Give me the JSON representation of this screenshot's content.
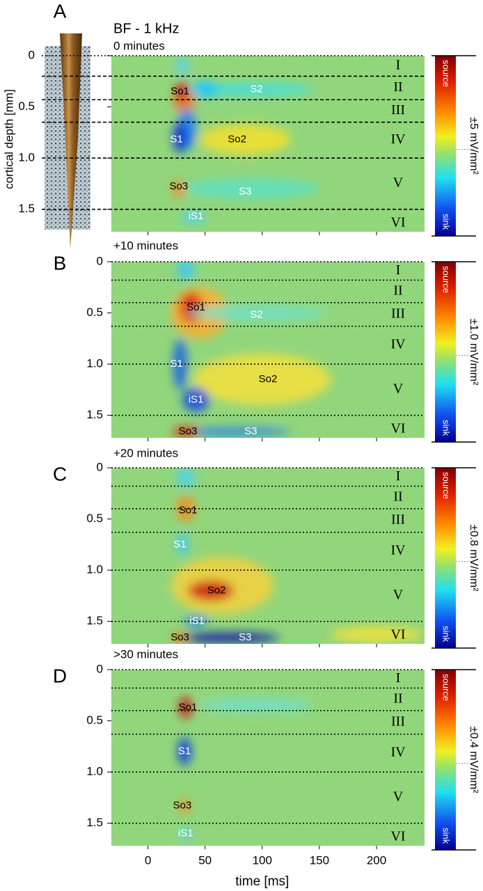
{
  "chart_data": [
    {
      "type": "heatmap",
      "panel": "A",
      "header": "BF - 1 kHz",
      "title": "0 minutes",
      "y_label": "cortical depth [mm]",
      "xlim": [
        -32,
        242
      ],
      "ylim": [
        0,
        1.72
      ],
      "xticks": [
        0,
        50,
        100,
        150,
        200
      ],
      "yticks": [
        0,
        0.5,
        {
          "value": 1,
          "label": "1.0"
        },
        1.5
      ],
      "layer_boundaries": [
        0.2,
        0.43,
        0.65,
        1.0,
        1.5
      ],
      "layers": [
        "I",
        "II",
        "III",
        "IV",
        "V",
        "VI"
      ],
      "annotations": [
        "So1",
        "S2",
        "S1",
        "So2",
        "So3",
        "S3",
        "iS1"
      ],
      "colorbar": {
        "top": "source",
        "bottom": "sink",
        "label": "±5 mV/mm²"
      }
    },
    {
      "type": "heatmap",
      "panel": "B",
      "title": "+10 minutes",
      "xlim": [
        -32,
        242
      ],
      "ylim": [
        0,
        1.72
      ],
      "xticks": [
        0,
        50,
        100,
        150,
        200
      ],
      "yticks": [
        0,
        0.5,
        {
          "value": 1,
          "label": "1.0"
        },
        1.5
      ],
      "layer_boundaries": [
        0.18,
        0.4,
        0.63,
        1.0,
        1.5
      ],
      "layers": [
        "I",
        "II",
        "III",
        "IV",
        "V",
        "VI"
      ],
      "annotations": [
        "So1",
        "S2",
        "S1",
        "So2",
        "iS1",
        "So3",
        "S3"
      ],
      "colorbar": {
        "top": "source",
        "bottom": "sink",
        "label": "±1.0 mV/mm²"
      }
    },
    {
      "type": "heatmap",
      "panel": "C",
      "title": "+20 minutes",
      "xlim": [
        -32,
        242
      ],
      "ylim": [
        0,
        1.72
      ],
      "xticks": [
        0,
        50,
        100,
        150,
        200
      ],
      "yticks": [
        0,
        0.5,
        {
          "value": 1,
          "label": "1.0"
        },
        1.5
      ],
      "layer_boundaries": [
        0.18,
        0.4,
        0.63,
        1.0,
        1.5
      ],
      "layers": [
        "I",
        "II",
        "III",
        "IV",
        "V",
        "VI"
      ],
      "annotations": [
        "So1",
        "S1",
        "So2",
        "iS1",
        "So3",
        "S3"
      ],
      "colorbar": {
        "top": "source",
        "bottom": "sink",
        "label": "±0.8 mV/mm²"
      }
    },
    {
      "type": "heatmap",
      "panel": "D",
      "title": ">30 minutes",
      "x_label": "time [ms]",
      "xlim": [
        -32,
        242
      ],
      "ylim": [
        0,
        1.72
      ],
      "xticks": [
        0,
        50,
        100,
        150,
        200
      ],
      "yticks": [
        0,
        0.5,
        {
          "value": 1,
          "label": "1.0"
        },
        1.5
      ],
      "layer_boundaries": [
        0.18,
        0.4,
        0.63,
        1.0,
        1.5
      ],
      "layers": [
        "I",
        "II",
        "III",
        "IV",
        "V",
        "VI"
      ],
      "annotations": [
        "So1",
        "S1",
        "So3",
        "iS1"
      ],
      "colorbar": {
        "top": "source",
        "bottom": "sink",
        "label": "±0.4 mV/mm²"
      }
    }
  ]
}
